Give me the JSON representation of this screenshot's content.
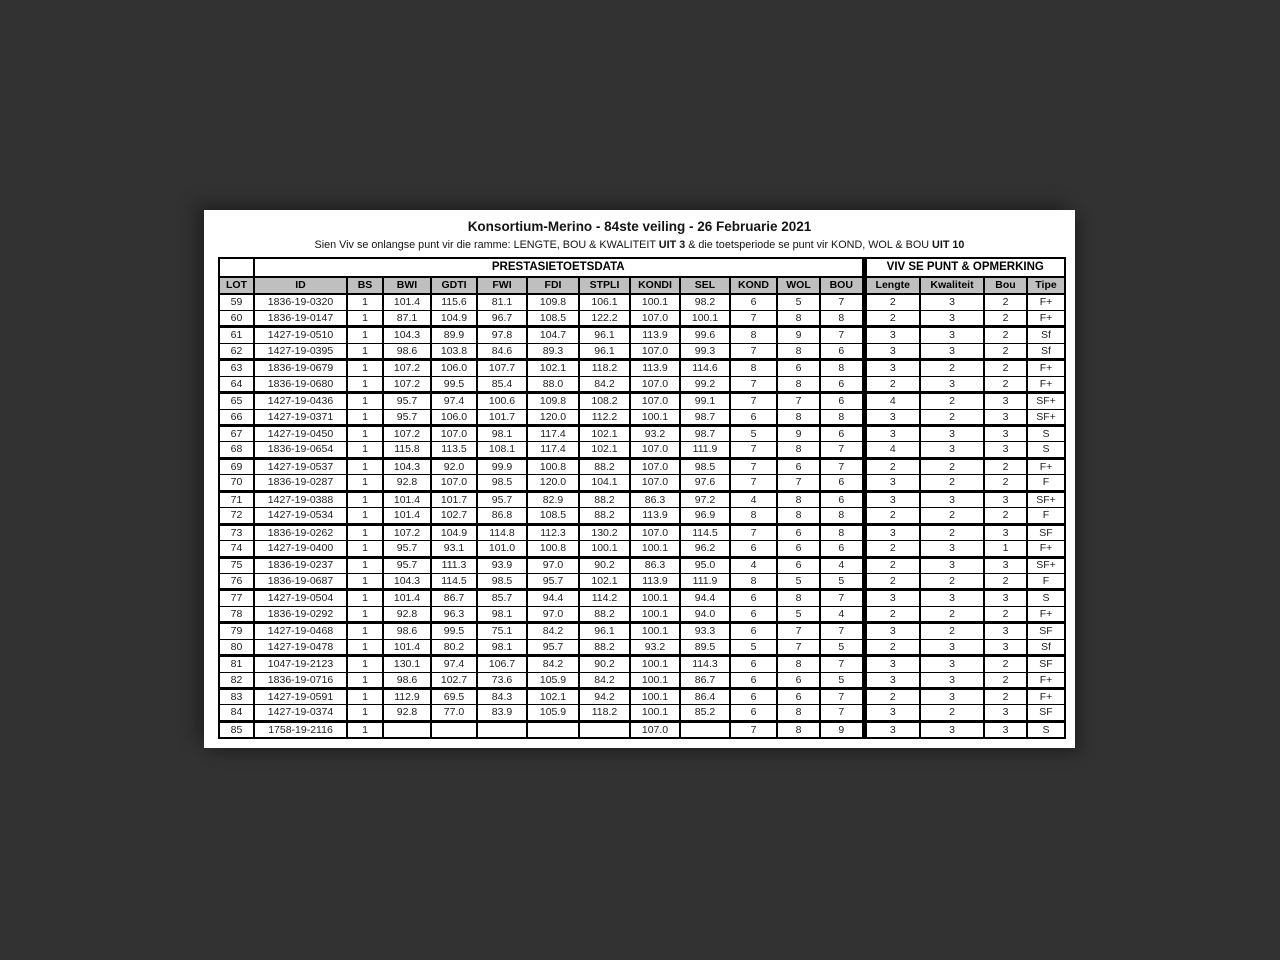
{
  "page": {
    "background_color": "#323232",
    "paper_color": "#ffffff",
    "header_bg_color": "#bfbfbf",
    "border_color": "#000000"
  },
  "document": {
    "title": "Konsortium-Merino - 84ste veiling - 26 Februarie 2021",
    "subtitle": {
      "part1": "Sien Viv se onlangse punt vir die ramme: LENGTE, BOU & KWALITEIT ",
      "bold1": "UIT 3",
      "part2": " & die toetsperiode se punt vir KOND, WOL & BOU ",
      "bold2": "UIT 10"
    }
  },
  "table": {
    "section_headers": {
      "prestasie": "PRESTASIETOETSDATA",
      "viv": "VIV SE PUNT & OPMERKING"
    },
    "columns": [
      "LOT",
      "ID",
      "BS",
      "BWI",
      "GDTI",
      "FWI",
      "FDI",
      "STPLI",
      "KONDI",
      "SEL",
      "KOND",
      "WOL",
      "BOU",
      "Lengte",
      "Kwaliteit",
      "Bou",
      "Tipe"
    ],
    "rows": [
      [
        "59",
        "1836-19-0320",
        "1",
        "101.4",
        "115.6",
        "81.1",
        "109.8",
        "106.1",
        "100.1",
        "98.2",
        "6",
        "5",
        "7",
        "2",
        "3",
        "2",
        "F+"
      ],
      [
        "60",
        "1836-19-0147",
        "1",
        "87.1",
        "104.9",
        "96.7",
        "108.5",
        "122.2",
        "107.0",
        "100.1",
        "7",
        "8",
        "8",
        "2",
        "3",
        "2",
        "F+"
      ],
      [
        "61",
        "1427-19-0510",
        "1",
        "104.3",
        "89.9",
        "97.8",
        "104.7",
        "96.1",
        "113.9",
        "99.6",
        "8",
        "9",
        "7",
        "3",
        "3",
        "2",
        "Sf"
      ],
      [
        "62",
        "1427-19-0395",
        "1",
        "98.6",
        "103.8",
        "84.6",
        "89.3",
        "96.1",
        "107.0",
        "99.3",
        "7",
        "8",
        "6",
        "3",
        "3",
        "2",
        "Sf"
      ],
      [
        "63",
        "1836-19-0679",
        "1",
        "107.2",
        "106.0",
        "107.7",
        "102.1",
        "118.2",
        "113.9",
        "114.6",
        "8",
        "6",
        "8",
        "3",
        "2",
        "2",
        "F+"
      ],
      [
        "64",
        "1836-19-0680",
        "1",
        "107.2",
        "99.5",
        "85.4",
        "88.0",
        "84.2",
        "107.0",
        "99.2",
        "7",
        "8",
        "6",
        "2",
        "3",
        "2",
        "F+"
      ],
      [
        "65",
        "1427-19-0436",
        "1",
        "95.7",
        "97.4",
        "100.6",
        "109.8",
        "108.2",
        "107.0",
        "99.1",
        "7",
        "7",
        "6",
        "4",
        "2",
        "3",
        "SF+"
      ],
      [
        "66",
        "1427-19-0371",
        "1",
        "95.7",
        "106.0",
        "101.7",
        "120.0",
        "112.2",
        "100.1",
        "98.7",
        "6",
        "8",
        "8",
        "3",
        "2",
        "3",
        "SF+"
      ],
      [
        "67",
        "1427-19-0450",
        "1",
        "107.2",
        "107.0",
        "98.1",
        "117.4",
        "102.1",
        "93.2",
        "98.7",
        "5",
        "9",
        "6",
        "3",
        "3",
        "3",
        "S"
      ],
      [
        "68",
        "1836-19-0654",
        "1",
        "115.8",
        "113.5",
        "108.1",
        "117.4",
        "102.1",
        "107.0",
        "111.9",
        "7",
        "8",
        "7",
        "4",
        "3",
        "3",
        "S"
      ],
      [
        "69",
        "1427-19-0537",
        "1",
        "104.3",
        "92.0",
        "99.9",
        "100.8",
        "88.2",
        "107.0",
        "98.5",
        "7",
        "6",
        "7",
        "2",
        "2",
        "2",
        "F+"
      ],
      [
        "70",
        "1836-19-0287",
        "1",
        "92.8",
        "107.0",
        "98.5",
        "120.0",
        "104.1",
        "107.0",
        "97.6",
        "7",
        "7",
        "6",
        "3",
        "2",
        "2",
        "F"
      ],
      [
        "71",
        "1427-19-0388",
        "1",
        "101.4",
        "101.7",
        "95.7",
        "82.9",
        "88.2",
        "86.3",
        "97.2",
        "4",
        "8",
        "6",
        "3",
        "3",
        "3",
        "SF+"
      ],
      [
        "72",
        "1427-19-0534",
        "1",
        "101.4",
        "102.7",
        "86.8",
        "108.5",
        "88.2",
        "113.9",
        "96.9",
        "8",
        "8",
        "8",
        "2",
        "2",
        "2",
        "F"
      ],
      [
        "73",
        "1836-19-0262",
        "1",
        "107.2",
        "104.9",
        "114.8",
        "112.3",
        "130.2",
        "107.0",
        "114.5",
        "7",
        "6",
        "8",
        "3",
        "2",
        "3",
        "SF"
      ],
      [
        "74",
        "1427-19-0400",
        "1",
        "95.7",
        "93.1",
        "101.0",
        "100.8",
        "100.1",
        "100.1",
        "96.2",
        "6",
        "6",
        "6",
        "2",
        "3",
        "1",
        "F+"
      ],
      [
        "75",
        "1836-19-0237",
        "1",
        "95.7",
        "111.3",
        "93.9",
        "97.0",
        "90.2",
        "86.3",
        "95.0",
        "4",
        "6",
        "4",
        "2",
        "3",
        "3",
        "SF+"
      ],
      [
        "76",
        "1836-19-0687",
        "1",
        "104.3",
        "114.5",
        "98.5",
        "95.7",
        "102.1",
        "113.9",
        "111.9",
        "8",
        "5",
        "5",
        "2",
        "2",
        "2",
        "F"
      ],
      [
        "77",
        "1427-19-0504",
        "1",
        "101.4",
        "86.7",
        "85.7",
        "94.4",
        "114.2",
        "100.1",
        "94.4",
        "6",
        "8",
        "7",
        "3",
        "3",
        "3",
        "S"
      ],
      [
        "78",
        "1836-19-0292",
        "1",
        "92.8",
        "96.3",
        "98.1",
        "97.0",
        "88.2",
        "100.1",
        "94.0",
        "6",
        "5",
        "4",
        "2",
        "2",
        "2",
        "F+"
      ],
      [
        "79",
        "1427-19-0468",
        "1",
        "98.6",
        "99.5",
        "75.1",
        "84.2",
        "96.1",
        "100.1",
        "93.3",
        "6",
        "7",
        "7",
        "3",
        "2",
        "3",
        "SF"
      ],
      [
        "80",
        "1427-19-0478",
        "1",
        "101.4",
        "80.2",
        "98.1",
        "95.7",
        "88.2",
        "93.2",
        "89.5",
        "5",
        "7",
        "5",
        "2",
        "3",
        "3",
        "Sf"
      ],
      [
        "81",
        "1047-19-2123",
        "1",
        "130.1",
        "97.4",
        "106.7",
        "84.2",
        "90.2",
        "100.1",
        "114.3",
        "6",
        "8",
        "7",
        "3",
        "3",
        "2",
        "SF"
      ],
      [
        "82",
        "1836-19-0716",
        "1",
        "98.6",
        "102.7",
        "73.6",
        "105.9",
        "84.2",
        "100.1",
        "86.7",
        "6",
        "6",
        "5",
        "3",
        "3",
        "2",
        "F+"
      ],
      [
        "83",
        "1427-19-0591",
        "1",
        "112.9",
        "69.5",
        "84.3",
        "102.1",
        "94.2",
        "100.1",
        "86.4",
        "6",
        "6",
        "7",
        "2",
        "3",
        "2",
        "F+"
      ],
      [
        "84",
        "1427-19-0374",
        "1",
        "92.8",
        "77.0",
        "83.9",
        "105.9",
        "118.2",
        "100.1",
        "85.2",
        "6",
        "8",
        "7",
        "3",
        "2",
        "3",
        "SF"
      ],
      [
        "85",
        "1758-19-2116",
        "1",
        "",
        "",
        "",
        "",
        "",
        "107.0",
        "",
        "7",
        "8",
        "9",
        "3",
        "3",
        "3",
        "S"
      ]
    ]
  }
}
